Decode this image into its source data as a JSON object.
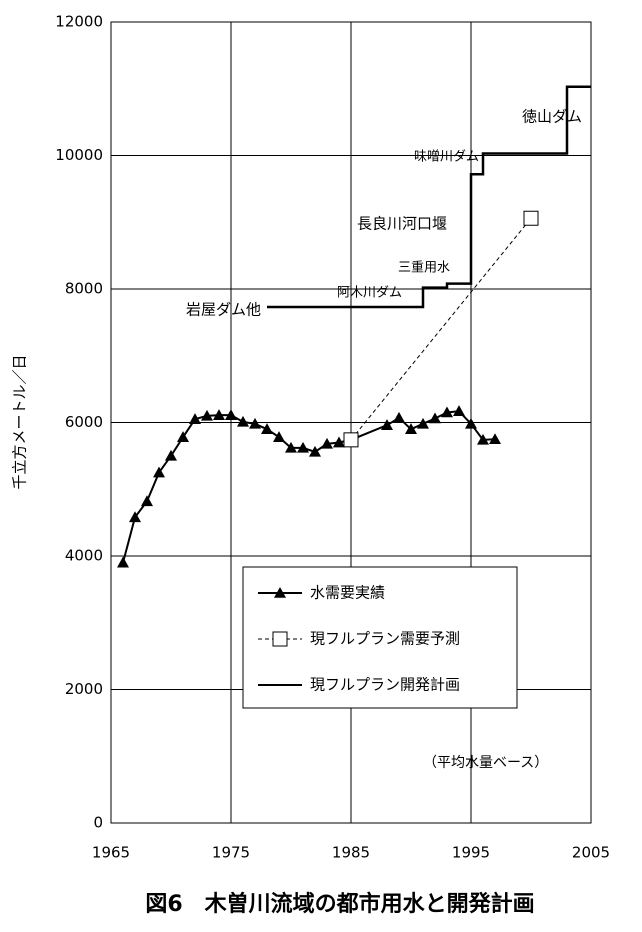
{
  "chart_data": {
    "type": "line",
    "title": "図6　木曽川流域の都市用水と開発計画",
    "y_label": "千立方メートル／日",
    "xlim": [
      1965,
      2005
    ],
    "xticks": [
      1965,
      1975,
      1985,
      1995,
      2005
    ],
    "ylim": [
      0,
      12000
    ],
    "yticks": [
      0,
      2000,
      4000,
      6000,
      8000,
      10000,
      12000
    ],
    "grid": true,
    "series": [
      {
        "name": "水需要実績",
        "color": "#000000",
        "marker": "triangle",
        "dash": false,
        "x": [
          1966,
          1967,
          1968,
          1969,
          1970,
          1971,
          1972,
          1973,
          1974,
          1975,
          1976,
          1977,
          1978,
          1979,
          1980,
          1981,
          1982,
          1983,
          1984,
          1985,
          1988,
          1989,
          1990,
          1991,
          1992,
          1993,
          1994,
          1995,
          1996,
          1997
        ],
        "values": [
          3900,
          4580,
          4820,
          5250,
          5500,
          5780,
          6050,
          6100,
          6110,
          6110,
          6010,
          5980,
          5900,
          5780,
          5620,
          5620,
          5560,
          5680,
          5700,
          5740,
          5960,
          6070,
          5900,
          5980,
          6060,
          6150,
          6170,
          5980,
          5740,
          5750
        ]
      },
      {
        "name": "現フルプラン需要予測",
        "color": "#000000",
        "marker": "square",
        "dash": true,
        "x": [
          1985,
          2000
        ],
        "values": [
          5740,
          9060
        ]
      },
      {
        "name": "現フルプラン開発計画",
        "color": "#000000",
        "marker": "none",
        "dash": false,
        "x": [
          1978,
          1991,
          1991,
          1993,
          1993,
          1995,
          1995,
          1996,
          1996,
          2003,
          2003,
          2005
        ],
        "values": [
          7730,
          7730,
          8020,
          8020,
          8080,
          8080,
          9720,
          9720,
          10030,
          10030,
          11030,
          11030
        ]
      }
    ],
    "annotations": [
      "岩屋ダム他",
      "阿木川ダム",
      "三重用水",
      "長良川河口堰",
      "味噌川ダム",
      "徳山ダム",
      "（平均水量ベース）"
    ]
  }
}
